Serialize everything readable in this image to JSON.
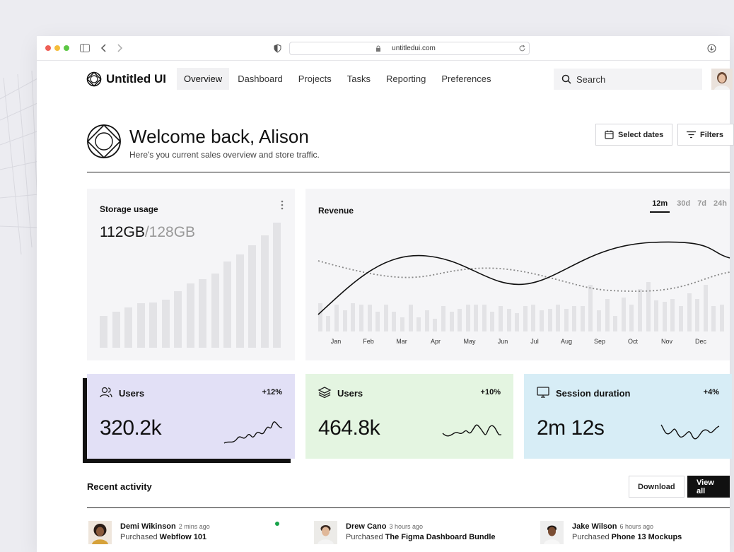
{
  "browser": {
    "url": "untitledui.com"
  },
  "app": {
    "logo_text": "Untitled UI"
  },
  "nav": [
    {
      "label": "Overview"
    },
    {
      "label": "Dashboard"
    },
    {
      "label": "Projects"
    },
    {
      "label": "Tasks"
    },
    {
      "label": "Reporting"
    },
    {
      "label": "Preferences"
    }
  ],
  "search": {
    "placeholder": "Search"
  },
  "header": {
    "title": "Welcome back, Alison",
    "subtitle": "Here's you current sales overview and store traffic.",
    "select_dates": "Select dates",
    "filters": "Filters"
  },
  "storage": {
    "title": "Storage usage",
    "used": "112GB",
    "total": "/128GB"
  },
  "revenue": {
    "title": "Revenue",
    "ranges": [
      "12m",
      "30d",
      "7d",
      "24h"
    ],
    "months": [
      "Jan",
      "Feb",
      "Mar",
      "Apr",
      "May",
      "Jun",
      "Jul",
      "Aug",
      "Sep",
      "Oct",
      "Nov",
      "Dec"
    ]
  },
  "stats": [
    {
      "label": "Users",
      "pct": "+12%",
      "value": "320.2k",
      "color": "#e2e0f6"
    },
    {
      "label": "Users",
      "pct": "+10%",
      "value": "464.8k",
      "color": "#e4f5e1"
    },
    {
      "label": "Session duration",
      "pct": "+4%",
      "value": "2m 12s",
      "color": "#d7edf6"
    }
  ],
  "recent": {
    "title": "Recent activity",
    "download": "Download",
    "view_all": "View all",
    "items": [
      {
        "name": "Demi Wikinson",
        "time": "2 mins ago",
        "action": "Purchased",
        "item": "Webflow 101"
      },
      {
        "name": "Drew Cano",
        "time": "3 hours ago",
        "action": "Purchased",
        "item": "The Figma Dashboard Bundle"
      },
      {
        "name": "Jake Wilson",
        "time": "6 hours ago",
        "action": "Purchased",
        "item": "Phone 13 Mockups"
      }
    ]
  },
  "icons": [
    "shield-icon",
    "lock-icon",
    "reload-icon",
    "download-icon",
    "search-icon",
    "calendar-icon",
    "filter-icon",
    "users-icon",
    "layers-icon",
    "monitor-icon"
  ]
}
